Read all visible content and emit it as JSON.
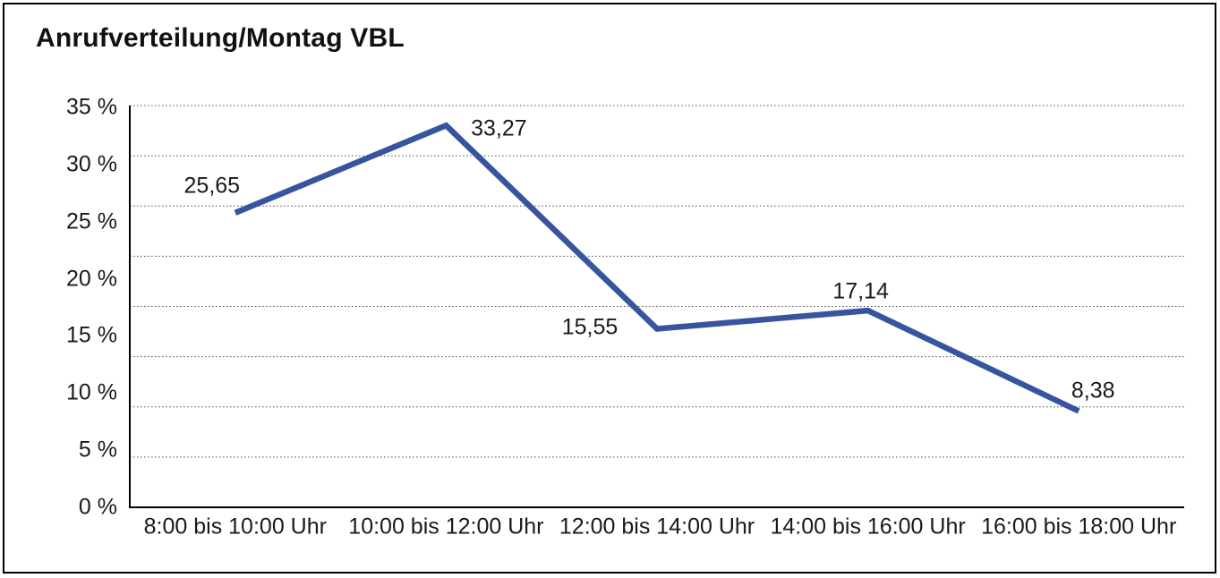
{
  "title": "Anrufverteilung/Montag VBL",
  "chart_data": {
    "type": "line",
    "title": "Anrufverteilung/Montag VBL",
    "categories": [
      "8:00 bis 10:00 Uhr",
      "10:00 bis 12:00 Uhr",
      "12:00 bis 14:00 Uhr",
      "14:00 bis 16:00 Uhr",
      "16:00 bis 18:00 Uhr"
    ],
    "values": [
      25.65,
      33.27,
      15.55,
      17.14,
      8.38
    ],
    "value_labels": [
      "25,65",
      "33,27",
      "15,55",
      "17,14",
      "8,38"
    ],
    "xlabel": "",
    "ylabel": "",
    "ylim": [
      0,
      35
    ],
    "y_tick_labels": [
      "35 %",
      "30 %",
      "25 %",
      "20 %",
      "15 %",
      "10 %",
      "5 %",
      "0 %"
    ],
    "y_tick_values": [
      35,
      30,
      25,
      20,
      15,
      10,
      5,
      0
    ],
    "grid": "dotted-horizontal",
    "grid_divisions": 8,
    "legend_position": "none",
    "line_color": "#37559F",
    "grid_color": "#555555",
    "axis_color": "#000000",
    "text_color": "#1a1a1a"
  }
}
